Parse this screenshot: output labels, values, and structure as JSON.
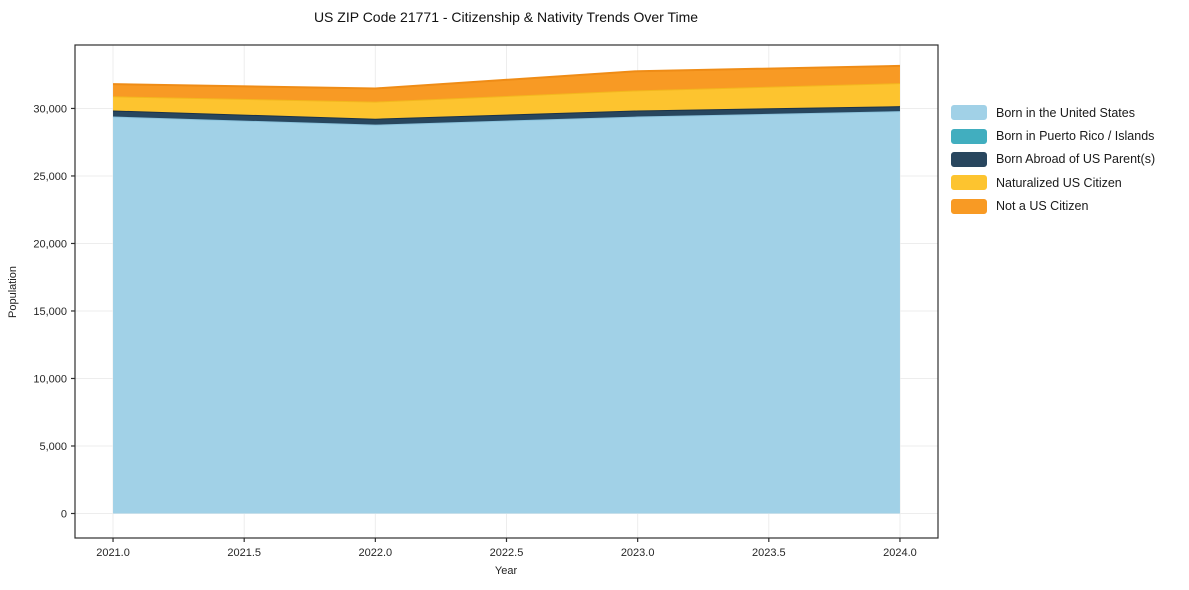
{
  "page": {
    "title": "US ZIP Code 21771 - Citizenship & Nativity Trends Over Time"
  },
  "chart_data": {
    "type": "area",
    "stacked": true,
    "title": "US ZIP Code 21771 - Citizenship & Nativity Trends Over Time",
    "xlabel": "Year",
    "ylabel": "Population",
    "x": [
      2021,
      2022,
      2023,
      2024
    ],
    "series": [
      {
        "name": "Born in the United States",
        "values": [
          29400,
          28800,
          29400,
          29800
        ],
        "fill": "#a1d1e7",
        "edge": "#8cc3dd"
      },
      {
        "name": "Born in Puerto Rico / Islands",
        "values": [
          0,
          0,
          0,
          0
        ],
        "fill": "#41aebf",
        "edge": "#2d97ab"
      },
      {
        "name": "Born Abroad of US Parent(s)",
        "values": [
          450,
          440,
          450,
          370
        ],
        "fill": "#28465e",
        "edge": "#1a3249"
      },
      {
        "name": "Naturalized US Citizen",
        "values": [
          1050,
          1270,
          1490,
          1710
        ],
        "fill": "#fdc42f",
        "edge": "#f3b71e"
      },
      {
        "name": "Not a US Citizen",
        "values": [
          900,
          970,
          1420,
          1270
        ],
        "fill": "#f89a24",
        "edge": "#ef8c16"
      }
    ],
    "xlim": [
      2020.855,
      2024.145
    ],
    "ylim": [
      -1815,
      34700
    ],
    "xticks": [
      {
        "v": 2021.0,
        "label": "2021.0"
      },
      {
        "v": 2021.5,
        "label": "2021.5"
      },
      {
        "v": 2022.0,
        "label": "2022.0"
      },
      {
        "v": 2022.5,
        "label": "2022.5"
      },
      {
        "v": 2023.0,
        "label": "2023.0"
      },
      {
        "v": 2023.5,
        "label": "2023.5"
      },
      {
        "v": 2024.0,
        "label": "2024.0"
      }
    ],
    "yticks": [
      {
        "v": 0,
        "label": "0"
      },
      {
        "v": 5000,
        "label": "5,000"
      },
      {
        "v": 10000,
        "label": "10,000"
      },
      {
        "v": 15000,
        "label": "15,000"
      },
      {
        "v": 20000,
        "label": "20,000"
      },
      {
        "v": 25000,
        "label": "25,000"
      },
      {
        "v": 30000,
        "label": "30,000"
      }
    ],
    "grid": true,
    "legend_position": "right"
  },
  "colors": {
    "background": "#ffffff",
    "axis": "#2e2e2e",
    "grid": "#ededed",
    "text": "#1a1a1a"
  }
}
